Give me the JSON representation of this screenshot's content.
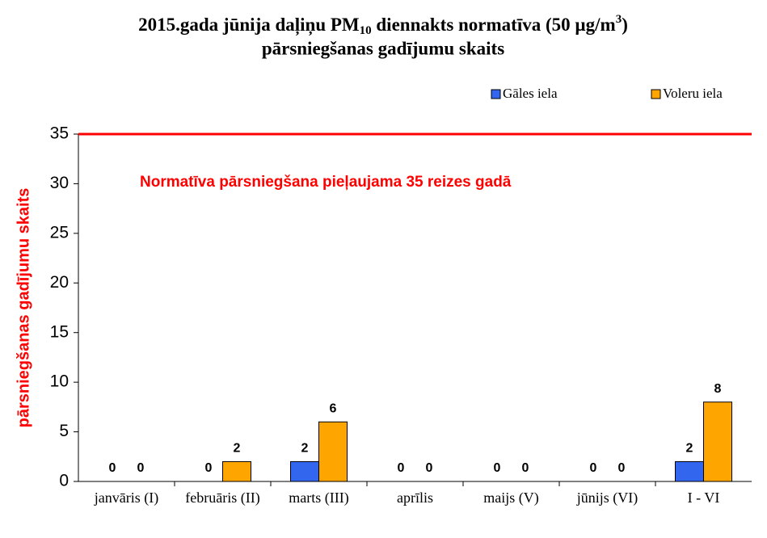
{
  "chart_data": {
    "type": "bar",
    "title": {
      "part1": "2015.gada jūnija daļiņu PM",
      "sub": "10",
      "part2": " diennakts normatīva (50 µg/m",
      "sup": "3",
      "part3": ")",
      "line2": "pārsniegšanas gadījumu skaits"
    },
    "y_label": "pārsniegšanas gadījumu skaits",
    "categories": [
      "janvāris (I)",
      "februāris (II)",
      "marts (III)",
      "aprīlis",
      "maijs (V)",
      "jūnijs (VI)",
      "I - VI"
    ],
    "series": [
      {
        "name": "Gāles iela",
        "color": "#3366ee",
        "values": [
          0,
          0,
          2,
          0,
          0,
          0,
          2
        ]
      },
      {
        "name": "Voleru iela",
        "color": "#ffa500",
        "values": [
          0,
          2,
          6,
          0,
          0,
          0,
          8
        ]
      }
    ],
    "ylim": [
      0,
      35
    ],
    "yticks": [
      0,
      5,
      10,
      15,
      20,
      25,
      30,
      35
    ],
    "reference_line": {
      "value": 35,
      "color": "#ff0000",
      "label": "Normatīva pārsniegšana pieļaujama 35 reizes gadā"
    },
    "legend": "top-right"
  }
}
